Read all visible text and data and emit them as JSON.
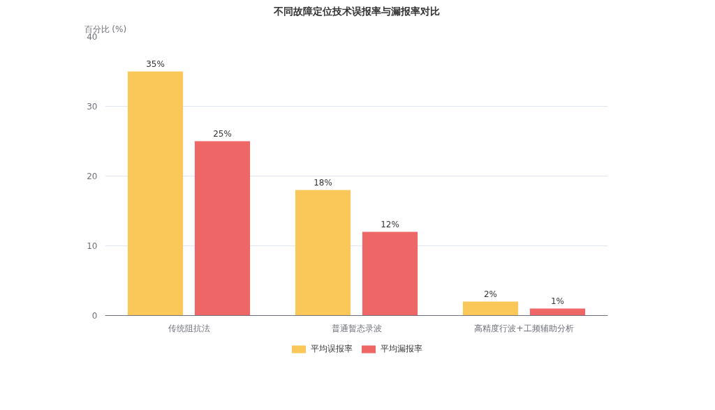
{
  "chart_data": {
    "type": "bar",
    "title": "不同故障定位技术误报率与漏报率对比",
    "ylabel": "百分比 (%)",
    "categories": [
      "传统阻抗法",
      "普通暂态录波",
      "高精度行波+工频辅助分析"
    ],
    "series": [
      {
        "name": "平均误报率",
        "color": "#fac858",
        "values": [
          35,
          18,
          2
        ],
        "value_labels": [
          "35%",
          "18%",
          "2%"
        ]
      },
      {
        "name": "平均漏报率",
        "color": "#ee6666",
        "values": [
          25,
          12,
          1
        ],
        "value_labels": [
          "25%",
          "12%",
          "1%"
        ]
      }
    ],
    "ylim": [
      0,
      40
    ],
    "yticks": [
      0,
      10,
      20,
      30,
      40
    ],
    "grid": "y",
    "legend": "bottom"
  }
}
